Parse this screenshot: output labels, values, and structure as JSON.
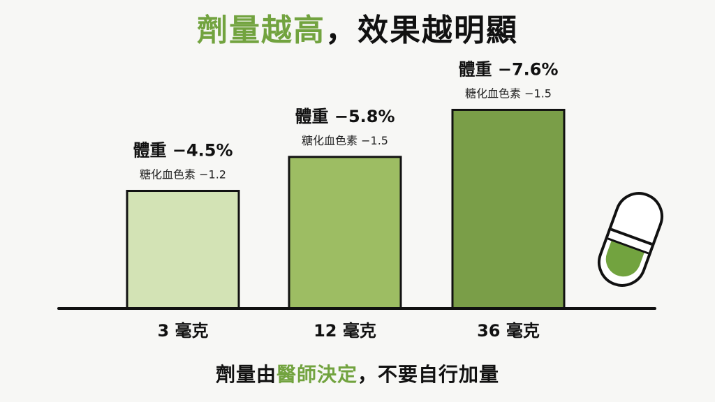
{
  "title": {
    "highlight": "劑量越高",
    "rest": "，效果越明顯"
  },
  "footer": {
    "prefix": "劑量由",
    "highlight": "醫師決定",
    "suffix": "，不要自行加量"
  },
  "colors": {
    "accent": "#72a33f",
    "bar_light": "#d3e3b5",
    "bar_mid": "#9dbd63",
    "bar_dark": "#7a9e48",
    "outline": "#111111"
  },
  "icon": "capsule-icon",
  "chart_data": {
    "type": "bar",
    "categories": [
      "3 毫克",
      "12 毫克",
      "36 毫克"
    ],
    "values": [
      4.5,
      5.8,
      7.6
    ],
    "data_labels": [
      "體重 −4.5%",
      "體重 −5.8%",
      "體重 −7.6%"
    ],
    "sub_labels": [
      "糖化血色素 −1.2",
      "糖化血色素 −1.5",
      "糖化血色素 −1.5"
    ],
    "ylim": [
      0,
      8.6
    ],
    "grid": false,
    "title": "",
    "xlabel": "",
    "ylabel": ""
  }
}
